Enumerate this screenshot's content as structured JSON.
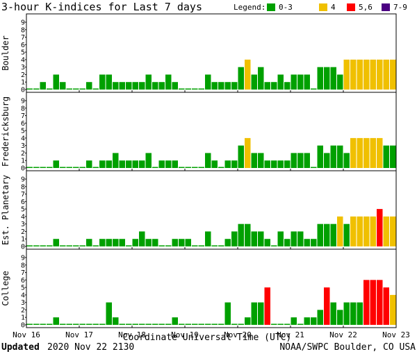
{
  "title": "3-hour K-indices for Last 7 days",
  "legend": {
    "label": "Legend:",
    "items": [
      {
        "label": "0-3",
        "color": "#00a000"
      },
      {
        "label": "4",
        "color": "#f0c000"
      },
      {
        "label": "5,6",
        "color": "#ff0000"
      },
      {
        "label": "7-9",
        "color": "#4b0082"
      }
    ]
  },
  "footer": {
    "updated_label": "Updated",
    "updated_value": "2020 Nov 22 2130",
    "source": "NOAA/SWPC Boulder, CO USA"
  },
  "chart_data": {
    "type": "bar",
    "xlabel": "Coordinate Universal Time (UTC)",
    "x_ticks": [
      "Nov 16",
      "Nov 17",
      "Nov 18",
      "Nov 19",
      "Nov 20",
      "Nov 21",
      "Nov 22",
      "Nov 23"
    ],
    "ylim": [
      0,
      9
    ],
    "y_ticks": [
      0,
      1,
      2,
      3,
      4,
      5,
      6,
      7,
      8,
      9
    ],
    "bars_per_day": 8,
    "series": [
      {
        "name": "Boulder",
        "values": [
          0,
          0,
          1,
          0,
          2,
          1,
          0,
          0,
          0,
          1,
          0,
          2,
          2,
          1,
          1,
          1,
          1,
          1,
          2,
          1,
          1,
          2,
          1,
          0,
          0,
          0,
          0,
          2,
          1,
          1,
          1,
          1,
          3,
          4,
          2,
          3,
          1,
          1,
          2,
          1,
          2,
          2,
          2,
          0,
          3,
          3,
          3,
          2,
          4,
          4,
          4,
          4,
          4,
          4,
          4,
          4
        ]
      },
      {
        "name": "Fredericksburg",
        "values": [
          0,
          0,
          0,
          0,
          1,
          0,
          0,
          0,
          0,
          1,
          0,
          1,
          1,
          2,
          1,
          1,
          1,
          1,
          2,
          0,
          1,
          1,
          1,
          0,
          0,
          0,
          0,
          2,
          1,
          0,
          1,
          1,
          3,
          4,
          2,
          2,
          1,
          1,
          1,
          1,
          2,
          2,
          2,
          0,
          3,
          2,
          3,
          3,
          2,
          4,
          4,
          4,
          4,
          4,
          3,
          3
        ]
      },
      {
        "name": "Est. Planetary",
        "values": [
          0,
          0,
          0,
          0,
          1,
          0,
          0,
          0,
          0,
          1,
          0,
          1,
          1,
          1,
          1,
          0,
          1,
          2,
          1,
          1,
          0,
          0,
          1,
          1,
          1,
          0,
          0,
          2,
          0,
          0,
          1,
          2,
          3,
          3,
          2,
          2,
          1,
          0,
          2,
          1,
          2,
          2,
          1,
          1,
          3,
          3,
          3,
          4,
          3,
          4,
          4,
          4,
          4,
          5,
          4,
          4
        ]
      },
      {
        "name": "College",
        "values": [
          0,
          0,
          0,
          0,
          1,
          0,
          0,
          0,
          0,
          0,
          0,
          0,
          3,
          1,
          0,
          0,
          0,
          0,
          0,
          0,
          0,
          0,
          1,
          0,
          0,
          0,
          0,
          0,
          0,
          0,
          3,
          0,
          0,
          1,
          3,
          3,
          5,
          0,
          0,
          0,
          1,
          0,
          1,
          1,
          2,
          5,
          3,
          2,
          3,
          3,
          3,
          6,
          6,
          6,
          5,
          4
        ]
      }
    ]
  }
}
